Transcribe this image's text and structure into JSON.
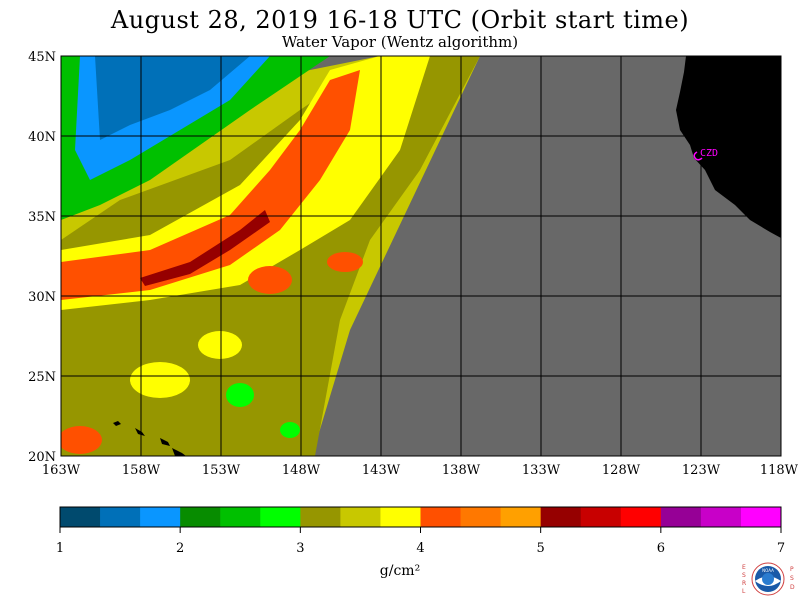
{
  "title": "August 28, 2019  16-18 UTC  (Orbit start time)",
  "subtitle": "Water Vapor (Wentz algorithm)",
  "chart_data": {
    "type": "heatmap",
    "title": "August 28, 2019  16-18 UTC  (Orbit start time)",
    "subtitle": "Water Vapor (Wentz algorithm)",
    "x_ticks": [
      "163W",
      "158W",
      "153W",
      "148W",
      "143W",
      "138W",
      "133W",
      "128W",
      "123W",
      "118W"
    ],
    "y_ticks": [
      "45N",
      "40N",
      "35N",
      "30N",
      "25N",
      "20N"
    ],
    "x_range": [
      -163,
      -118
    ],
    "y_range": [
      20,
      45
    ],
    "grid": true,
    "station_label": "CZD",
    "colorbar": {
      "label": "g/cm²",
      "ticks": [
        "1",
        "2",
        "3",
        "4",
        "5",
        "6",
        "7"
      ],
      "range": [
        1,
        7
      ],
      "colors": [
        "#004a6e",
        "#0070b8",
        "#0a96ff",
        "#078c00",
        "#00c000",
        "#00ff00",
        "#969600",
        "#c8c800",
        "#ffff00",
        "#ff5000",
        "#ff7800",
        "#ffa000",
        "#960000",
        "#c80000",
        "#ff0000",
        "#960096",
        "#c800c8",
        "#ff00ff"
      ]
    },
    "fields": [
      {
        "region": "northwest-core",
        "value": 1.4
      },
      {
        "region": "northwest-ring",
        "value": 1.8
      },
      {
        "region": "north-band",
        "value": 2.4
      },
      {
        "region": "central-band",
        "value": 3.3
      },
      {
        "region": "moist-tongue",
        "value": 3.8
      },
      {
        "region": "plume",
        "value": 4.3
      },
      {
        "region": "plume-core",
        "value": 5.1
      },
      {
        "region": "south",
        "value": 3.4
      }
    ]
  },
  "logo": {
    "left_letters": "ESRL",
    "right_letters": "PSD",
    "center_text": "NOAA"
  }
}
